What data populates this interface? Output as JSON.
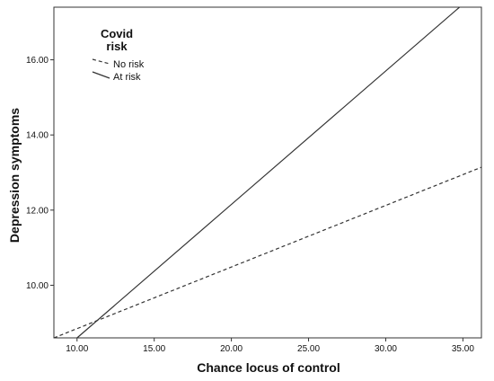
{
  "chart_data": {
    "type": "line",
    "xlabel": "Chance locus of control",
    "ylabel": "Depression symptoms",
    "xlim": [
      8.5,
      36.2
    ],
    "ylim": [
      8.6,
      17.4
    ],
    "x_ticks": [
      "10.00",
      "15.00",
      "20.00",
      "25.00",
      "30.00",
      "35.00"
    ],
    "y_ticks": [
      "10.00",
      "12.00",
      "14.00",
      "16.00"
    ],
    "grid": false,
    "legend": {
      "title_lines": [
        "Covid",
        "risk"
      ],
      "placement": "top-left",
      "entries": [
        "No risk",
        "At risk"
      ]
    },
    "series": [
      {
        "name": "No risk",
        "style": "dashed",
        "color": "#333333",
        "x": [
          8.5,
          36.2
        ],
        "y": [
          8.6,
          13.14
        ]
      },
      {
        "name": "At risk",
        "style": "solid",
        "color": "#333333",
        "x": [
          10.0,
          34.78
        ],
        "y": [
          8.6,
          17.4
        ]
      }
    ]
  }
}
